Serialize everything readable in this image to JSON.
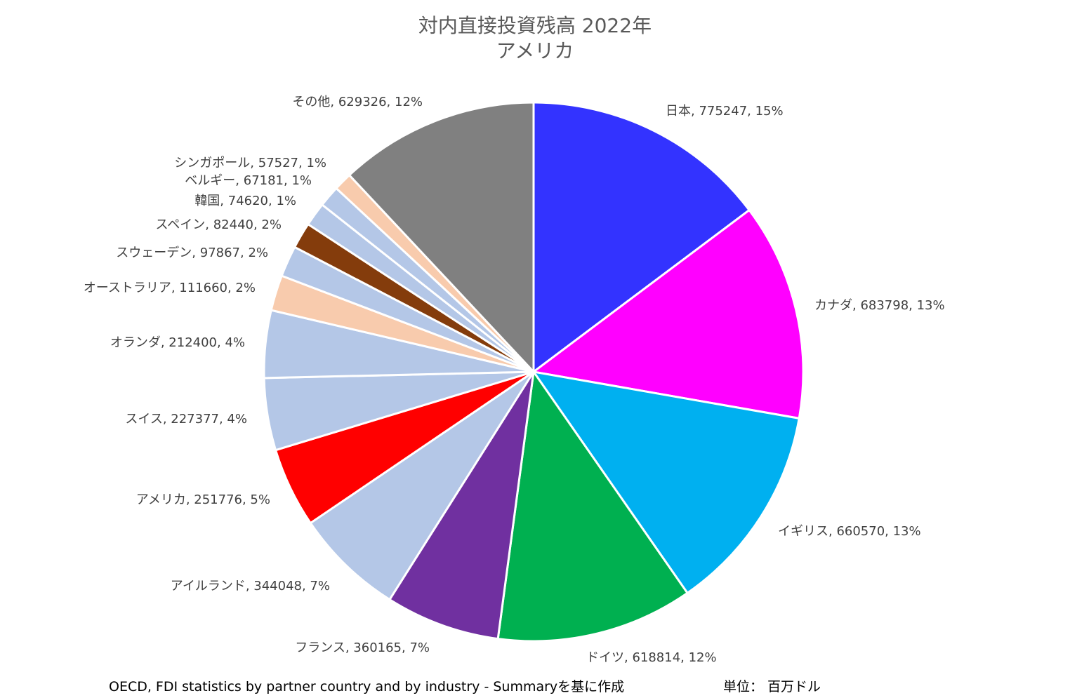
{
  "chart_data": {
    "type": "pie",
    "title": "対内直接投資残高 2022年",
    "subtitle": "アメリカ",
    "slices": [
      {
        "label": "日本",
        "value": 775247,
        "percent": "15%",
        "color": "#3333FF"
      },
      {
        "label": "カナダ",
        "value": 683798,
        "percent": "13%",
        "color": "#FF00FF"
      },
      {
        "label": "イギリス",
        "value": 660570,
        "percent": "13%",
        "color": "#00B0F0"
      },
      {
        "label": "ドイツ",
        "value": 618814,
        "percent": "12%",
        "color": "#00B050"
      },
      {
        "label": "フランス",
        "value": 360165,
        "percent": "7%",
        "color": "#7030A0"
      },
      {
        "label": "アイルランド",
        "value": 344048,
        "percent": "7%",
        "color": "#B4C7E7"
      },
      {
        "label": "アメリカ",
        "value": 251776,
        "percent": "5%",
        "color": "#FF0000"
      },
      {
        "label": "スイス",
        "value": 227377,
        "percent": "4%",
        "color": "#B4C7E7"
      },
      {
        "label": "オランダ",
        "value": 212400,
        "percent": "4%",
        "color": "#B4C7E7"
      },
      {
        "label": "オーストラリア",
        "value": 111660,
        "percent": "2%",
        "color": "#F8CBAD"
      },
      {
        "label": "スウェーデン",
        "value": 97867,
        "percent": "2%",
        "color": "#B4C7E7"
      },
      {
        "label": "スペイン",
        "value": 82440,
        "percent": "2%",
        "color": "#843C0C"
      },
      {
        "label": "韓国",
        "value": 74620,
        "percent": "1%",
        "color": "#B4C7E7"
      },
      {
        "label": "ベルギー",
        "value": 67181,
        "percent": "1%",
        "color": "#B4C7E7"
      },
      {
        "label": "シンガポール",
        "value": 57527,
        "percent": "1%",
        "color": "#F8CBAD"
      },
      {
        "label": "その他",
        "value": 629326,
        "percent": "12%",
        "color": "#808080"
      }
    ],
    "label_format": "{label}, {value}, {percent}",
    "legend": "none"
  },
  "footer": {
    "source": "OECD, FDI statistics by partner country and by industry - Summaryを基に作成",
    "unit": "単位： 百万ドル"
  }
}
